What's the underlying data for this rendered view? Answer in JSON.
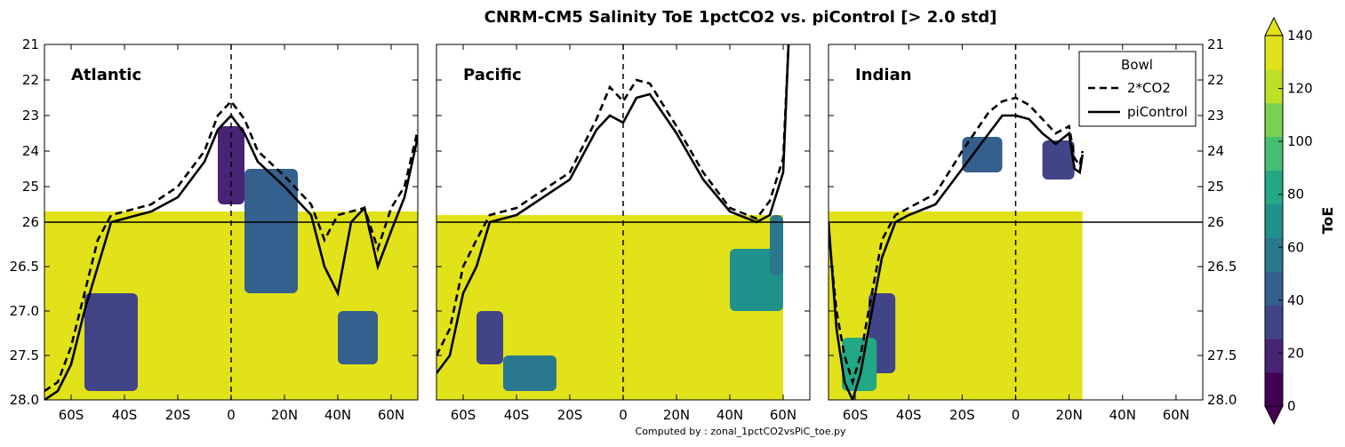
{
  "figure": {
    "title": "CNRM-CM5 Salinity ToE 1pctCO2 vs. piControl [> 2.0 std]",
    "footer": "Computed by : zonal_1pctCO2vsPiC_toe.py"
  },
  "colorbar": {
    "label": "ToE",
    "ticks": [
      "0",
      "20",
      "40",
      "60",
      "80",
      "100",
      "120",
      "140"
    ],
    "colors": [
      "#440154",
      "#482475",
      "#414487",
      "#355f8d",
      "#2a788e",
      "#21918c",
      "#22a884",
      "#44bf70",
      "#7ad151",
      "#bddf26",
      "#e2e21a"
    ]
  },
  "legend": {
    "title": "Bowl",
    "entries": [
      {
        "label": "2*CO2",
        "style": "dashed"
      },
      {
        "label": "piControl",
        "style": "solid"
      }
    ]
  },
  "chart_data": {
    "type": "contourf",
    "y_axis": {
      "tick_labels_left": [
        "21",
        "22",
        "23",
        "24",
        "25",
        "26",
        "26.5",
        "27.0",
        "27.5",
        "28.0"
      ],
      "tick_labels_right": [
        "21",
        "22",
        "23",
        "24",
        "25",
        "26",
        "26.5",
        "27.5",
        "28.0"
      ],
      "inverted": true,
      "range": [
        21,
        28
      ],
      "scale_break_at": 26,
      "reference_line": 26
    },
    "x_axis": {
      "tick_labels": [
        "60S",
        "40S",
        "20S",
        "0",
        "20N",
        "40N",
        "60N"
      ],
      "tick_values": [
        -60,
        -40,
        -20,
        0,
        20,
        40,
        60
      ],
      "range": [
        -70,
        70
      ],
      "reference_line": 0
    },
    "panels": [
      {
        "name": "Atlantic",
        "toe_patches": [
          {
            "lat_range": [
              -70,
              70
            ],
            "density_range": [
              25.7,
              28.0
            ],
            "toe": 140
          },
          {
            "lat_range": [
              -55,
              -35
            ],
            "density_range": [
              26.8,
              27.9
            ],
            "toe": 25
          },
          {
            "lat_range": [
              -5,
              5
            ],
            "density_range": [
              23.3,
              25.5
            ],
            "toe": 20
          },
          {
            "lat_range": [
              5,
              25
            ],
            "density_range": [
              24.5,
              26.8
            ],
            "toe": 45
          },
          {
            "lat_range": [
              40,
              55
            ],
            "density_range": [
              27.0,
              27.6
            ],
            "toe": 35
          }
        ],
        "piControl_bowl": {
          "lat": [
            -70,
            -65,
            -60,
            -55,
            -50,
            -45,
            -40,
            -35,
            -30,
            -20,
            -10,
            -5,
            0,
            5,
            10,
            20,
            30,
            35,
            40,
            45,
            50,
            55,
            60,
            65,
            70
          ],
          "density": [
            28.0,
            27.9,
            27.6,
            27.0,
            26.5,
            26.0,
            25.9,
            25.8,
            25.7,
            25.3,
            24.3,
            23.4,
            23.0,
            23.5,
            24.3,
            25.0,
            25.8,
            26.5,
            26.8,
            26.0,
            25.6,
            26.5,
            26.1,
            25.3,
            23.6
          ]
        },
        "co2_bowl": {
          "lat": [
            -70,
            -65,
            -60,
            -55,
            -50,
            -45,
            -40,
            -35,
            -30,
            -20,
            -10,
            -5,
            0,
            5,
            10,
            20,
            30,
            35,
            40,
            45,
            50,
            55,
            60,
            65,
            70
          ],
          "density": [
            27.9,
            27.8,
            27.4,
            26.8,
            26.2,
            25.8,
            25.7,
            25.6,
            25.5,
            25.0,
            24.0,
            23.0,
            22.6,
            23.1,
            24.0,
            24.7,
            25.5,
            26.2,
            25.8,
            25.7,
            25.6,
            26.3,
            25.6,
            25.0,
            23.4
          ]
        }
      },
      {
        "name": "Pacific",
        "toe_patches": [
          {
            "lat_range": [
              -70,
              60
            ],
            "density_range": [
              25.8,
              28.0
            ],
            "toe": 140
          },
          {
            "lat_range": [
              -55,
              -45
            ],
            "density_range": [
              27.0,
              27.6
            ],
            "toe": 25
          },
          {
            "lat_range": [
              -45,
              -25
            ],
            "density_range": [
              27.5,
              27.9
            ],
            "toe": 60
          },
          {
            "lat_range": [
              40,
              60
            ],
            "density_range": [
              26.3,
              27.0
            ],
            "toe": 70
          },
          {
            "lat_range": [
              55,
              60
            ],
            "density_range": [
              25.8,
              26.6
            ],
            "toe": 50
          }
        ],
        "piControl_bowl": {
          "lat": [
            -70,
            -65,
            -60,
            -55,
            -50,
            -40,
            -30,
            -20,
            -10,
            -5,
            0,
            5,
            10,
            20,
            30,
            40,
            50,
            55,
            60,
            62
          ],
          "density": [
            27.7,
            27.5,
            26.8,
            26.5,
            26.0,
            25.8,
            25.3,
            24.8,
            23.4,
            23.0,
            23.2,
            22.5,
            22.4,
            23.5,
            24.8,
            25.7,
            26.0,
            25.8,
            24.6,
            21.0
          ]
        },
        "co2_bowl": {
          "lat": [
            -70,
            -65,
            -60,
            -55,
            -50,
            -40,
            -30,
            -20,
            -10,
            -5,
            0,
            5,
            10,
            20,
            30,
            40,
            50,
            55,
            60,
            62
          ],
          "density": [
            27.5,
            27.2,
            26.5,
            26.2,
            25.8,
            25.6,
            25.1,
            24.6,
            23.1,
            22.2,
            22.6,
            22.0,
            22.1,
            23.3,
            24.6,
            25.6,
            25.9,
            25.4,
            24.2,
            21.0
          ]
        }
      },
      {
        "name": "Indian",
        "toe_patches": [
          {
            "lat_range": [
              -70,
              25
            ],
            "density_range": [
              25.7,
              28.0
            ],
            "toe": 140
          },
          {
            "lat_range": [
              -55,
              -45
            ],
            "density_range": [
              26.8,
              27.7
            ],
            "toe": 25
          },
          {
            "lat_range": [
              -65,
              -52
            ],
            "density_range": [
              27.3,
              27.9
            ],
            "toe": 80
          },
          {
            "lat_range": [
              -20,
              -5
            ],
            "density_range": [
              23.6,
              24.6
            ],
            "toe": 40
          },
          {
            "lat_range": [
              10,
              22
            ],
            "density_range": [
              23.7,
              24.8
            ],
            "toe": 30
          }
        ],
        "piControl_bowl": {
          "lat": [
            -70,
            -67,
            -64,
            -61,
            -58,
            -55,
            -50,
            -45,
            -40,
            -30,
            -20,
            -10,
            -5,
            0,
            5,
            10,
            15,
            20,
            22,
            24,
            25
          ],
          "density": [
            26.0,
            27.2,
            27.8,
            28.0,
            27.7,
            27.2,
            26.4,
            26.0,
            25.8,
            25.5,
            24.5,
            23.5,
            23.0,
            23.0,
            23.1,
            23.5,
            23.8,
            23.5,
            24.5,
            24.6,
            24.1
          ]
        },
        "co2_bowl": {
          "lat": [
            -70,
            -67,
            -64,
            -61,
            -58,
            -55,
            -50,
            -45,
            -40,
            -30,
            -20,
            -10,
            -5,
            0,
            5,
            10,
            15,
            20,
            22,
            24,
            25
          ],
          "density": [
            26.1,
            27.0,
            27.5,
            27.8,
            27.5,
            27.0,
            26.2,
            25.8,
            25.6,
            25.2,
            24.0,
            22.9,
            22.6,
            22.5,
            22.7,
            23.1,
            23.5,
            23.3,
            24.2,
            24.4,
            24.0
          ]
        }
      }
    ]
  }
}
